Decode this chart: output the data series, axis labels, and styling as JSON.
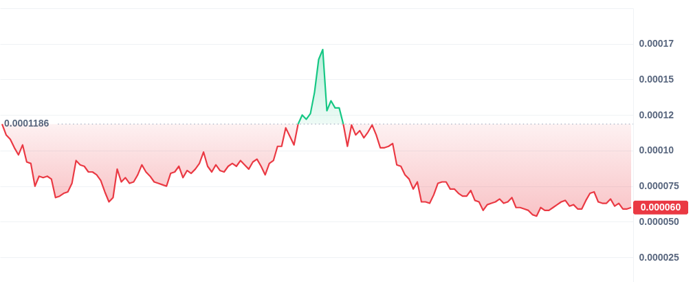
{
  "chart_data": {
    "type": "area",
    "categories": [
      null,
      null,
      null,
      null,
      null,
      null,
      null,
      null,
      null,
      null,
      null,
      null,
      null,
      null,
      null,
      null,
      null,
      null,
      null,
      null,
      null,
      null,
      null,
      null,
      null,
      null,
      null,
      null,
      null,
      null,
      null,
      null,
      null,
      null,
      null,
      null,
      null,
      null,
      null,
      null,
      null,
      null,
      null,
      null,
      null,
      null,
      null,
      null,
      null,
      null,
      null,
      null,
      null,
      null,
      null,
      null,
      null,
      null,
      null,
      null,
      null,
      null,
      null,
      null,
      null,
      null,
      null,
      null,
      null,
      null,
      null,
      null,
      null,
      null,
      null,
      null,
      null,
      null,
      null,
      null,
      null,
      null,
      null,
      null,
      null,
      null,
      null,
      null,
      null,
      null,
      null,
      null,
      null,
      null,
      null,
      null,
      null,
      null,
      null,
      null,
      null,
      null,
      null,
      null,
      null,
      null,
      null,
      null,
      null,
      null,
      null,
      null,
      null,
      null,
      null,
      null,
      null,
      null,
      null,
      null,
      null,
      null,
      null,
      null,
      null,
      null,
      null,
      null,
      null,
      null,
      null,
      null,
      null,
      null,
      null,
      null,
      null,
      null,
      null,
      null,
      null,
      null,
      null,
      null,
      null,
      null,
      null,
      null,
      null,
      null,
      null,
      null,
      null,
      null
    ],
    "series": [
      {
        "type": "line",
        "color": "#ea3943",
        "values": [
          0.0001186,
          0.000111,
          0.000108,
          0.000102,
          9.7e-05,
          0.000104,
          9.2e-05,
          9.1e-05,
          7.5e-05,
          8.2e-05,
          8.1e-05,
          8.2e-05,
          8e-05,
          6.7e-05,
          6.8e-05,
          7e-05,
          7.1e-05,
          7.7e-05,
          9.3e-05,
          9e-05,
          8.9e-05,
          8.5e-05,
          8.5e-05,
          8.3e-05,
          7.9e-05,
          7.1e-05,
          6.4e-05,
          6.7e-05,
          8.7e-05,
          7.8e-05,
          8.1e-05,
          7.7e-05,
          7.8e-05,
          8.3e-05,
          9e-05,
          8.5e-05,
          8.2e-05,
          7.8e-05,
          7.7e-05,
          7.6e-05,
          7.5e-05,
          8.4e-05,
          8.5e-05,
          8.9e-05,
          8.1e-05,
          8.6e-05,
          8.4e-05,
          8.7e-05,
          9.1e-05,
          9.9e-05,
          8.9e-05,
          8.5e-05,
          9e-05,
          8.6e-05,
          8.5e-05,
          8.9e-05,
          9.1e-05,
          8.9e-05,
          9.3e-05,
          9e-05,
          8.7e-05,
          9.2e-05,
          9.4e-05,
          8.9e-05,
          8.3e-05,
          9.1e-05,
          9.3e-05,
          0.000103,
          0.000103,
          0.000116,
          0.00011,
          0.000104,
          0.0001186,
          null,
          null,
          null,
          null,
          null,
          null,
          null,
          null,
          null,
          null,
          null,
          null,
          null,
          null,
          null,
          null,
          null,
          null,
          null,
          null,
          null,
          null,
          null,
          null,
          null,
          null,
          null,
          null,
          null,
          null,
          null,
          null,
          null,
          null,
          null,
          null,
          null,
          null,
          null,
          null,
          null,
          null,
          null,
          null,
          null,
          null,
          null,
          null,
          null,
          null,
          null,
          null,
          null,
          null,
          null,
          null,
          null,
          null,
          null,
          null,
          null,
          null,
          null,
          null,
          null,
          null,
          null,
          null,
          null,
          null,
          null,
          null,
          null,
          null,
          null,
          null,
          null,
          null,
          null,
          null,
          null
        ],
        "lower": [
          0.0001186,
          0.000111,
          0.000108,
          0.000102,
          9.7e-05,
          0.000104,
          9.2e-05,
          9.1e-05,
          7.5e-05,
          8.2e-05,
          8.1e-05,
          8.2e-05,
          8e-05,
          6.7e-05,
          6.8e-05,
          7e-05,
          7.1e-05,
          7.7e-05,
          9.3e-05,
          9e-05,
          8.9e-05,
          8.5e-05,
          8.5e-05,
          8.3e-05,
          7.9e-05,
          7.1e-05,
          6.4e-05,
          6.7e-05,
          8.7e-05,
          7.8e-05,
          8.1e-05,
          7.7e-05,
          7.8e-05,
          8.3e-05,
          9e-05,
          8.5e-05,
          8.2e-05,
          7.8e-05,
          7.7e-05,
          7.6e-05,
          7.5e-05,
          8.4e-05,
          8.5e-05,
          8.9e-05,
          8.1e-05,
          8.6e-05,
          8.4e-05,
          8.7e-05,
          9.1e-05,
          9.9e-05,
          8.9e-05,
          8.5e-05,
          9e-05,
          8.6e-05,
          8.5e-05,
          8.9e-05,
          9.1e-05,
          8.9e-05,
          9.3e-05,
          9e-05,
          8.7e-05,
          9.2e-05,
          9.4e-05,
          8.9e-05,
          8.3e-05,
          9.1e-05,
          9.3e-05,
          0.000103,
          0.000103,
          0.000116,
          0.00011,
          0.000104,
          0.0001186,
          null,
          null,
          null,
          null,
          null,
          null,
          null,
          null,
          null,
          null,
          null,
          null,
          null,
          null,
          null,
          null,
          null,
          null,
          null,
          null,
          null,
          null,
          null,
          null,
          null,
          null,
          null,
          null,
          null,
          null,
          null,
          null,
          null,
          null,
          null,
          null,
          null,
          null,
          null,
          null,
          null,
          null,
          null,
          null,
          null,
          null,
          null,
          null,
          null,
          null,
          null,
          null,
          null,
          null,
          null,
          null,
          null,
          null,
          null,
          null,
          null,
          null,
          null,
          null,
          null,
          null,
          null,
          null,
          null,
          null,
          null,
          null,
          null,
          null,
          null,
          null,
          null,
          null,
          null,
          null,
          null
        ],
        "upper": [
          0.0001186,
          0.0001186,
          0.0001186,
          0.0001186,
          0.0001186,
          0.0001186,
          0.0001186,
          0.0001186,
          0.0001186,
          0.0001186,
          0.0001186,
          0.0001186,
          0.0001186,
          0.0001186,
          0.0001186,
          0.0001186,
          0.0001186,
          0.0001186,
          0.0001186,
          0.0001186,
          0.0001186,
          0.0001186,
          0.0001186,
          0.0001186,
          0.0001186,
          0.0001186,
          0.0001186,
          0.0001186,
          0.0001186,
          0.0001186,
          0.0001186,
          0.0001186,
          0.0001186,
          0.0001186,
          0.0001186,
          0.0001186,
          0.0001186,
          0.0001186,
          0.0001186,
          0.0001186,
          0.0001186,
          0.0001186,
          0.0001186,
          0.0001186,
          0.0001186,
          0.0001186,
          0.0001186,
          0.0001186,
          0.0001186,
          0.0001186,
          0.0001186,
          0.0001186,
          0.0001186,
          0.0001186,
          0.0001186,
          0.0001186,
          0.0001186,
          0.0001186,
          0.0001186,
          0.0001186,
          0.0001186,
          0.0001186,
          0.0001186,
          0.0001186,
          0.0001186,
          0.0001186,
          0.0001186,
          0.0001186,
          0.0001186,
          0.0001186,
          0.0001186,
          0.0001186,
          0.0001186,
          null,
          null,
          null,
          null,
          null,
          null,
          null,
          null,
          null,
          null,
          null,
          null,
          null,
          null,
          null,
          null,
          null,
          null,
          null,
          null,
          null,
          null,
          null,
          null,
          null,
          null,
          null,
          null,
          null,
          null,
          null,
          null,
          null,
          null,
          null,
          null,
          null,
          null,
          null,
          null,
          null,
          null,
          null,
          null,
          null,
          null,
          null,
          null,
          null,
          null,
          null,
          null,
          null,
          null,
          null,
          null,
          null,
          null,
          null,
          null,
          null,
          null,
          null,
          null,
          null,
          null,
          null,
          null,
          null,
          null,
          null,
          null,
          null,
          null,
          null,
          null,
          null,
          null,
          null,
          null,
          null
        ]
      },
      {
        "color": "#16c784",
        "values": [
          null,
          null,
          null,
          null,
          null,
          null,
          null,
          null,
          null,
          null,
          null,
          null,
          null,
          null,
          null,
          null,
          null,
          null,
          null,
          null,
          null,
          null,
          null,
          null,
          null,
          null,
          null,
          null,
          null,
          null,
          null,
          null,
          null,
          null,
          null,
          null,
          null,
          null,
          null,
          null,
          null,
          null,
          null,
          null,
          null,
          null,
          null,
          null,
          null,
          null,
          null,
          null,
          null,
          null,
          null,
          null,
          null,
          null,
          null,
          null,
          null,
          null,
          null,
          null,
          null,
          null,
          null,
          null,
          null,
          null,
          null,
          null,
          0.0001186,
          0.000125,
          0.000122,
          0.000126,
          0.000141,
          0.000164,
          0.000171,
          0.000128,
          0.000135,
          0.00013,
          0.00013,
          0.0001186,
          null,
          null,
          null,
          null,
          null,
          null,
          null,
          null,
          null,
          null,
          null,
          null,
          null,
          null,
          null,
          null,
          null,
          null,
          null,
          null,
          null,
          null,
          null,
          null,
          null,
          null,
          null,
          null,
          null,
          null,
          null,
          null,
          null,
          null,
          null,
          null,
          null,
          null,
          null,
          null,
          null,
          null,
          null,
          null,
          null,
          null,
          null,
          null,
          null,
          null,
          null,
          null,
          null,
          null,
          null,
          null,
          null,
          null,
          null,
          null,
          null,
          null,
          null,
          null,
          null,
          null,
          null,
          null,
          null,
          null
        ]
      },
      {
        "type": "line",
        "color": "#ea3943",
        "values": [
          null,
          null,
          null,
          null,
          null,
          null,
          null,
          null,
          null,
          null,
          null,
          null,
          null,
          null,
          null,
          null,
          null,
          null,
          null,
          null,
          null,
          null,
          null,
          null,
          null,
          null,
          null,
          null,
          null,
          null,
          null,
          null,
          null,
          null,
          null,
          null,
          null,
          null,
          null,
          null,
          null,
          null,
          null,
          null,
          null,
          null,
          null,
          null,
          null,
          null,
          null,
          null,
          null,
          null,
          null,
          null,
          null,
          null,
          null,
          null,
          null,
          null,
          null,
          null,
          null,
          null,
          null,
          null,
          null,
          null,
          null,
          null,
          null,
          null,
          null,
          null,
          null,
          null,
          null,
          null,
          null,
          null,
          null,
          0.0001186,
          0.000103,
          0.000118,
          0.000111,
          0.000114,
          0.000109,
          0.000113,
          0.000118,
          0.000111,
          0.000102,
          0.000102,
          0.000103,
          0.000105,
          9e-05,
          8.9e-05,
          8.3e-05,
          8e-05,
          7.3e-05,
          7.8e-05,
          6.4e-05,
          6.4e-05,
          6.3e-05,
          6.9e-05,
          7.7e-05,
          7.8e-05,
          7.8e-05,
          7.3e-05,
          7.3e-05,
          7e-05,
          6.8e-05,
          6.8e-05,
          7.2e-05,
          6.5e-05,
          6.4e-05,
          5.8e-05,
          6.2e-05,
          6.3e-05,
          6.4e-05,
          6.6e-05,
          6.3e-05,
          6.4e-05,
          6.7e-05,
          6e-05,
          6e-05,
          5.9e-05,
          5.8e-05,
          5.5e-05,
          5.4e-05,
          6e-05,
          5.8e-05,
          5.8e-05,
          6e-05,
          6.2e-05,
          6.4e-05,
          6.5e-05,
          6.1e-05,
          6.2e-05,
          5.9e-05,
          5.9e-05,
          6.5e-05,
          7e-05,
          7.1e-05,
          6.4e-05,
          6.3e-05,
          6.3e-05,
          6.6e-05,
          6.1e-05,
          6.3e-05,
          5.9e-05,
          5.9e-05,
          6e-05
        ],
        "lower": [
          null,
          null,
          null,
          null,
          null,
          null,
          null,
          null,
          null,
          null,
          null,
          null,
          null,
          null,
          null,
          null,
          null,
          null,
          null,
          null,
          null,
          null,
          null,
          null,
          null,
          null,
          null,
          null,
          null,
          null,
          null,
          null,
          null,
          null,
          null,
          null,
          null,
          null,
          null,
          null,
          null,
          null,
          null,
          null,
          null,
          null,
          null,
          null,
          null,
          null,
          null,
          null,
          null,
          null,
          null,
          null,
          null,
          null,
          null,
          null,
          null,
          null,
          null,
          null,
          null,
          null,
          null,
          null,
          null,
          null,
          null,
          null,
          null,
          null,
          null,
          null,
          null,
          null,
          null,
          null,
          null,
          null,
          null,
          0.0001186,
          0.000103,
          0.000118,
          0.000111,
          0.000114,
          0.000109,
          0.000113,
          0.000118,
          0.000111,
          0.000102,
          0.000102,
          0.000103,
          0.000105,
          9e-05,
          8.9e-05,
          8.3e-05,
          8e-05,
          7.3e-05,
          7.8e-05,
          6.4e-05,
          6.4e-05,
          6.3e-05,
          6.9e-05,
          7.7e-05,
          7.8e-05,
          7.8e-05,
          7.3e-05,
          7.3e-05,
          7e-05,
          6.8e-05,
          6.8e-05,
          7.2e-05,
          6.5e-05,
          6.4e-05,
          5.8e-05,
          6.2e-05,
          6.3e-05,
          6.4e-05,
          6.6e-05,
          6.3e-05,
          6.4e-05,
          6.7e-05,
          6e-05,
          6e-05,
          5.9e-05,
          5.8e-05,
          5.5e-05,
          5.4e-05,
          6e-05,
          5.8e-05,
          5.8e-05,
          6e-05,
          6.2e-05,
          6.4e-05,
          6.5e-05,
          6.1e-05,
          6.2e-05,
          5.9e-05,
          5.9e-05,
          6.5e-05,
          7e-05,
          7.1e-05,
          6.4e-05,
          6.3e-05,
          6.3e-05,
          6.6e-05,
          6.1e-05,
          6.3e-05,
          5.9e-05,
          5.9e-05,
          6e-05
        ],
        "upper": [
          null,
          null,
          null,
          null,
          null,
          null,
          null,
          null,
          null,
          null,
          null,
          null,
          null,
          null,
          null,
          null,
          null,
          null,
          null,
          null,
          null,
          null,
          null,
          null,
          null,
          null,
          null,
          null,
          null,
          null,
          null,
          null,
          null,
          null,
          null,
          null,
          null,
          null,
          null,
          null,
          null,
          null,
          null,
          null,
          null,
          null,
          null,
          null,
          null,
          null,
          null,
          null,
          null,
          null,
          null,
          null,
          null,
          null,
          null,
          null,
          null,
          null,
          null,
          null,
          null,
          null,
          null,
          null,
          null,
          null,
          null,
          null,
          null,
          null,
          null,
          null,
          null,
          null,
          null,
          null,
          null,
          null,
          null,
          0.0001186,
          0.0001186,
          0.0001186,
          0.0001186,
          0.0001186,
          0.0001186,
          0.0001186,
          0.0001186,
          0.0001186,
          0.0001186,
          0.0001186,
          0.0001186,
          0.0001186,
          0.0001186,
          0.0001186,
          0.0001186,
          0.0001186,
          0.0001186,
          0.0001186,
          0.0001186,
          0.0001186,
          0.0001186,
          0.0001186,
          0.0001186,
          0.0001186,
          0.0001186,
          0.0001186,
          0.0001186,
          0.0001186,
          0.0001186,
          0.0001186,
          0.0001186,
          0.0001186,
          0.0001186,
          0.0001186,
          0.0001186,
          0.0001186,
          0.0001186,
          0.0001186,
          0.0001186,
          0.0001186,
          0.0001186,
          0.0001186,
          0.0001186,
          0.0001186,
          0.0001186,
          0.0001186,
          0.0001186,
          0.0001186,
          0.0001186,
          0.0001186,
          0.0001186,
          0.0001186,
          0.0001186,
          0.0001186,
          0.0001186,
          0.0001186,
          0.0001186,
          0.0001186,
          0.0001186,
          0.0001186,
          0.0001186,
          0.0001186,
          0.0001186,
          0.0001186,
          0.0001186,
          0.0001186,
          0.0001186,
          0.0001186,
          0.0001186,
          0.0001186
        ]
      }
    ],
    "ylim": [
      7.7e-06,
      0.0002
    ],
    "yticks": [
      {
        "value": 2.5e-05,
        "label": "0.000025"
      },
      {
        "value": 5e-05,
        "label": "0.000050"
      },
      {
        "value": 7.5e-05,
        "label": "0.000075"
      },
      {
        "value": 0.0001,
        "label": "0.00010"
      },
      {
        "value": 0.000125,
        "label": "0.00012"
      },
      0.00015,
      {
        "value": 0.000175,
        "label": "0.00017"
      },
      {
        "value": 0.0002,
        "label": null
      }
    ],
    "grid": "y",
    "tick_labels": "y",
    "ref_lines": [
      {
        "axis": "y",
        "value": 0.0001186,
        "label": "0.0001186",
        "line_style": "dotted",
        "color": "#a6b0c3"
      }
    ],
    "annotations": [
      "0.000060"
    ]
  }
}
